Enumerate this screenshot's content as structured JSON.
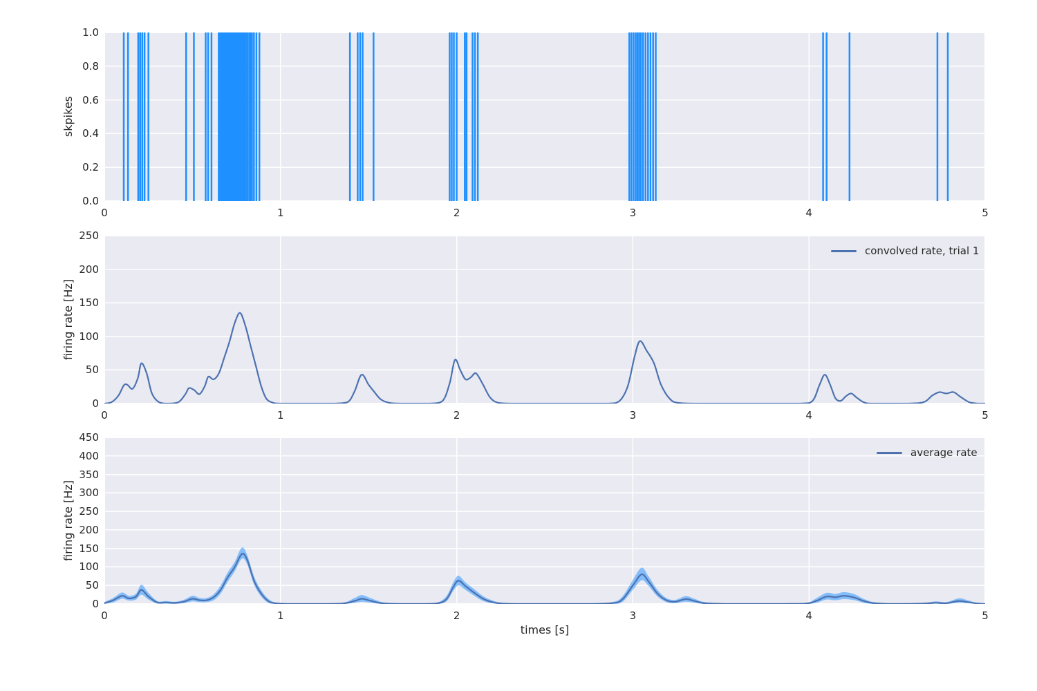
{
  "colors": {
    "figure_bg": "#ffffff",
    "axes_bg": "#EAEAF2",
    "grid": "#ffffff",
    "text": "#262626",
    "spike": "#1E90FF",
    "line": "#4C72B0",
    "band": "rgba(30,144,255,0.5)"
  },
  "chart_data": [
    {
      "id": "spike-raster",
      "type": "bar",
      "subtype": "eventplot-spike-raster",
      "title": "",
      "xlabel": "",
      "ylabel": "skpikes",
      "xlim": [
        0,
        5
      ],
      "ylim": [
        0.0,
        1.0
      ],
      "xticks": [
        "0",
        "1",
        "2",
        "3",
        "4",
        "5"
      ],
      "yticks": [
        "0.0",
        "0.2",
        "0.4",
        "0.6",
        "0.8",
        "1.0"
      ],
      "grid": true,
      "spike_value": 1.0,
      "spike_times": [
        0.11,
        0.134,
        0.192,
        0.203,
        0.215,
        0.228,
        0.25,
        0.464,
        0.508,
        0.575,
        0.589,
        0.608,
        0.649,
        0.657,
        0.664,
        0.671,
        0.678,
        0.685,
        0.692,
        0.699,
        0.706,
        0.713,
        0.72,
        0.728,
        0.736,
        0.744,
        0.752,
        0.76,
        0.768,
        0.776,
        0.785,
        0.794,
        0.803,
        0.812,
        0.822,
        0.83,
        0.838,
        0.849,
        0.863,
        0.88,
        1.394,
        1.438,
        1.452,
        1.466,
        1.528,
        1.96,
        1.972,
        1.984,
        2.0,
        2.046,
        2.056,
        2.09,
        2.104,
        2.12,
        2.98,
        2.992,
        3.004,
        3.016,
        3.026,
        3.036,
        3.046,
        3.058,
        3.072,
        3.086,
        3.1,
        3.115,
        3.13,
        4.08,
        4.1,
        4.23,
        4.729,
        4.788
      ]
    },
    {
      "id": "convolved-rate",
      "type": "line",
      "title": "",
      "xlabel": "",
      "ylabel": "firing rate [Hz]",
      "xlim": [
        0,
        5
      ],
      "ylim": [
        0,
        250
      ],
      "xticks": [
        "0",
        "1",
        "2",
        "3",
        "4",
        "5"
      ],
      "yticks": [
        "0",
        "50",
        "100",
        "150",
        "200",
        "250"
      ],
      "grid": true,
      "legend": {
        "label": "convolved rate, trial 1",
        "position": "upper right"
      },
      "series": {
        "t": [
          0.0,
          0.04,
          0.08,
          0.11,
          0.13,
          0.16,
          0.19,
          0.21,
          0.24,
          0.27,
          0.31,
          0.36,
          0.42,
          0.46,
          0.48,
          0.51,
          0.54,
          0.57,
          0.59,
          0.62,
          0.65,
          0.68,
          0.71,
          0.74,
          0.77,
          0.8,
          0.83,
          0.86,
          0.89,
          0.92,
          0.96,
          1.0,
          1.1,
          1.2,
          1.3,
          1.38,
          1.42,
          1.46,
          1.5,
          1.53,
          1.57,
          1.62,
          1.7,
          1.85,
          1.92,
          1.96,
          1.99,
          2.02,
          2.05,
          2.08,
          2.11,
          2.15,
          2.19,
          2.24,
          2.35,
          2.6,
          2.85,
          2.92,
          2.97,
          3.01,
          3.04,
          3.08,
          3.12,
          3.16,
          3.21,
          3.26,
          3.4,
          3.7,
          3.95,
          4.02,
          4.06,
          4.09,
          4.12,
          4.15,
          4.18,
          4.21,
          4.24,
          4.27,
          4.31,
          4.36,
          4.55,
          4.65,
          4.7,
          4.74,
          4.78,
          4.82,
          4.86,
          4.91,
          4.96,
          5.0
        ],
        "v": [
          0,
          2,
          12,
          27,
          28,
          22,
          38,
          60,
          45,
          15,
          2,
          0,
          2,
          14,
          23,
          20,
          14,
          26,
          40,
          36,
          45,
          68,
          92,
          120,
          135,
          116,
          86,
          56,
          26,
          7,
          1,
          0,
          0,
          0,
          0,
          2,
          18,
          43,
          28,
          18,
          6,
          1,
          0,
          0,
          4,
          30,
          65,
          50,
          36,
          39,
          45,
          28,
          9,
          1,
          0,
          0,
          0,
          3,
          25,
          70,
          93,
          78,
          60,
          28,
          7,
          1,
          0,
          0,
          0,
          4,
          28,
          43,
          28,
          8,
          4,
          11,
          15,
          9,
          2,
          0,
          0,
          2,
          12,
          17,
          15,
          17,
          10,
          2,
          0,
          0
        ]
      }
    },
    {
      "id": "average-rate",
      "type": "area",
      "title": "",
      "xlabel": "times [s]",
      "ylabel": "firing rate [Hz]",
      "xlim": [
        0,
        5
      ],
      "ylim": [
        0,
        450
      ],
      "xticks": [
        "0",
        "1",
        "2",
        "3",
        "4",
        "5"
      ],
      "yticks": [
        "0",
        "50",
        "100",
        "150",
        "200",
        "250",
        "300",
        "350",
        "400",
        "450"
      ],
      "grid": true,
      "legend": {
        "label": "average rate",
        "position": "upper right"
      },
      "series": {
        "t": [
          0.0,
          0.05,
          0.1,
          0.14,
          0.18,
          0.21,
          0.25,
          0.3,
          0.35,
          0.4,
          0.45,
          0.5,
          0.54,
          0.58,
          0.62,
          0.66,
          0.7,
          0.74,
          0.78,
          0.81,
          0.85,
          0.89,
          0.93,
          0.97,
          1.05,
          1.2,
          1.35,
          1.42,
          1.46,
          1.5,
          1.55,
          1.6,
          1.75,
          1.88,
          1.94,
          1.98,
          2.01,
          2.05,
          2.1,
          2.15,
          2.2,
          2.26,
          2.4,
          2.7,
          2.88,
          2.94,
          3.0,
          3.05,
          3.09,
          3.14,
          3.19,
          3.24,
          3.3,
          3.35,
          3.41,
          3.55,
          3.8,
          3.98,
          4.04,
          4.1,
          4.15,
          4.2,
          4.26,
          4.31,
          4.37,
          4.5,
          4.65,
          4.72,
          4.78,
          4.85,
          4.9,
          4.96,
          5.0
        ],
        "mean": [
          2,
          10,
          22,
          15,
          20,
          38,
          20,
          4,
          4,
          3,
          6,
          14,
          10,
          10,
          18,
          38,
          72,
          100,
          135,
          120,
          62,
          28,
          8,
          2,
          0,
          0,
          1,
          8,
          14,
          10,
          4,
          1,
          0,
          1,
          12,
          45,
          63,
          48,
          30,
          14,
          5,
          1,
          0,
          0,
          2,
          12,
          50,
          80,
          60,
          28,
          10,
          6,
          13,
          8,
          2,
          0,
          0,
          1,
          8,
          20,
          18,
          22,
          17,
          8,
          2,
          0,
          1,
          3,
          2,
          8,
          5,
          1,
          0
        ],
        "lo": [
          0,
          4,
          14,
          9,
          12,
          25,
          12,
          1,
          1,
          0,
          2,
          7,
          5,
          5,
          10,
          28,
          60,
          88,
          122,
          108,
          52,
          20,
          3,
          0,
          0,
          0,
          0,
          3,
          6,
          4,
          1,
          0,
          0,
          0,
          6,
          35,
          50,
          38,
          22,
          8,
          2,
          0,
          0,
          0,
          0,
          5,
          38,
          64,
          48,
          20,
          5,
          2,
          6,
          3,
          0,
          0,
          0,
          0,
          3,
          12,
          10,
          13,
          10,
          3,
          0,
          0,
          0,
          1,
          0,
          3,
          2,
          0,
          0
        ],
        "hi": [
          5,
          16,
          31,
          22,
          28,
          52,
          30,
          8,
          8,
          6,
          11,
          22,
          16,
          16,
          26,
          50,
          85,
          114,
          152,
          133,
          74,
          37,
          14,
          4,
          1,
          1,
          3,
          16,
          24,
          18,
          9,
          3,
          1,
          3,
          20,
          58,
          76,
          58,
          40,
          21,
          10,
          3,
          1,
          1,
          5,
          20,
          65,
          98,
          74,
          38,
          16,
          11,
          21,
          14,
          5,
          1,
          1,
          3,
          15,
          30,
          27,
          32,
          26,
          14,
          5,
          1,
          3,
          7,
          5,
          15,
          10,
          2,
          1
        ]
      }
    }
  ]
}
